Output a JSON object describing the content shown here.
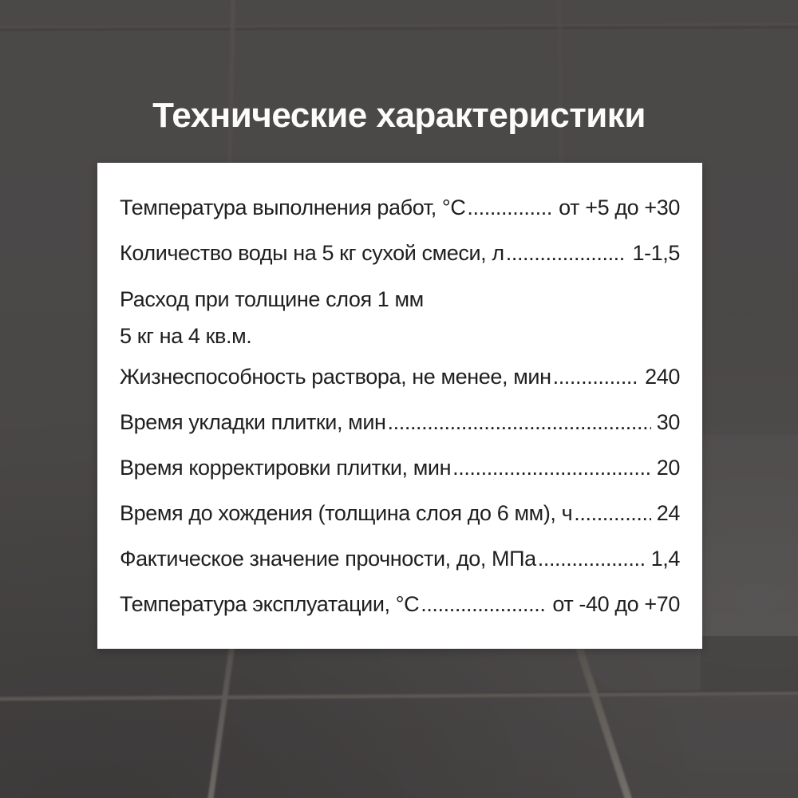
{
  "title": "Технические характеристики",
  "card": {
    "rows": [
      {
        "label": "Температура выполнения работ, °С",
        "value": "от +5 до +30"
      },
      {
        "label": "Количество воды на 5 кг сухой смеси, л",
        "value": "1-1,5"
      },
      {
        "label": "Расход при толщине слоя 1 мм",
        "label2": "5 кг на 4 кв.м.",
        "value": ""
      },
      {
        "label": "Жизнеспособность раствора, не менее, мин",
        "value": "240"
      },
      {
        "label": "Время укладки плитки, мин",
        "value": "30"
      },
      {
        "label": "Время корректировки плитки, мин",
        "value": "20"
      },
      {
        "label": "Время до хождения (толщина слоя до 6 мм), ч",
        "value": "24"
      },
      {
        "label": "Фактическое значение прочности, до, МПа",
        "value": "1,4"
      },
      {
        "label": "Температура эксплуатации, °С",
        "value": "от -40 до +70"
      }
    ]
  },
  "colors": {
    "background_tile": "#4a4747",
    "grout_light": "#6e6a66",
    "grout_dark": "#3d3a39",
    "card_background": "#ffffff",
    "card_text": "#1f1f1f",
    "title_text": "#fcfcfb"
  }
}
